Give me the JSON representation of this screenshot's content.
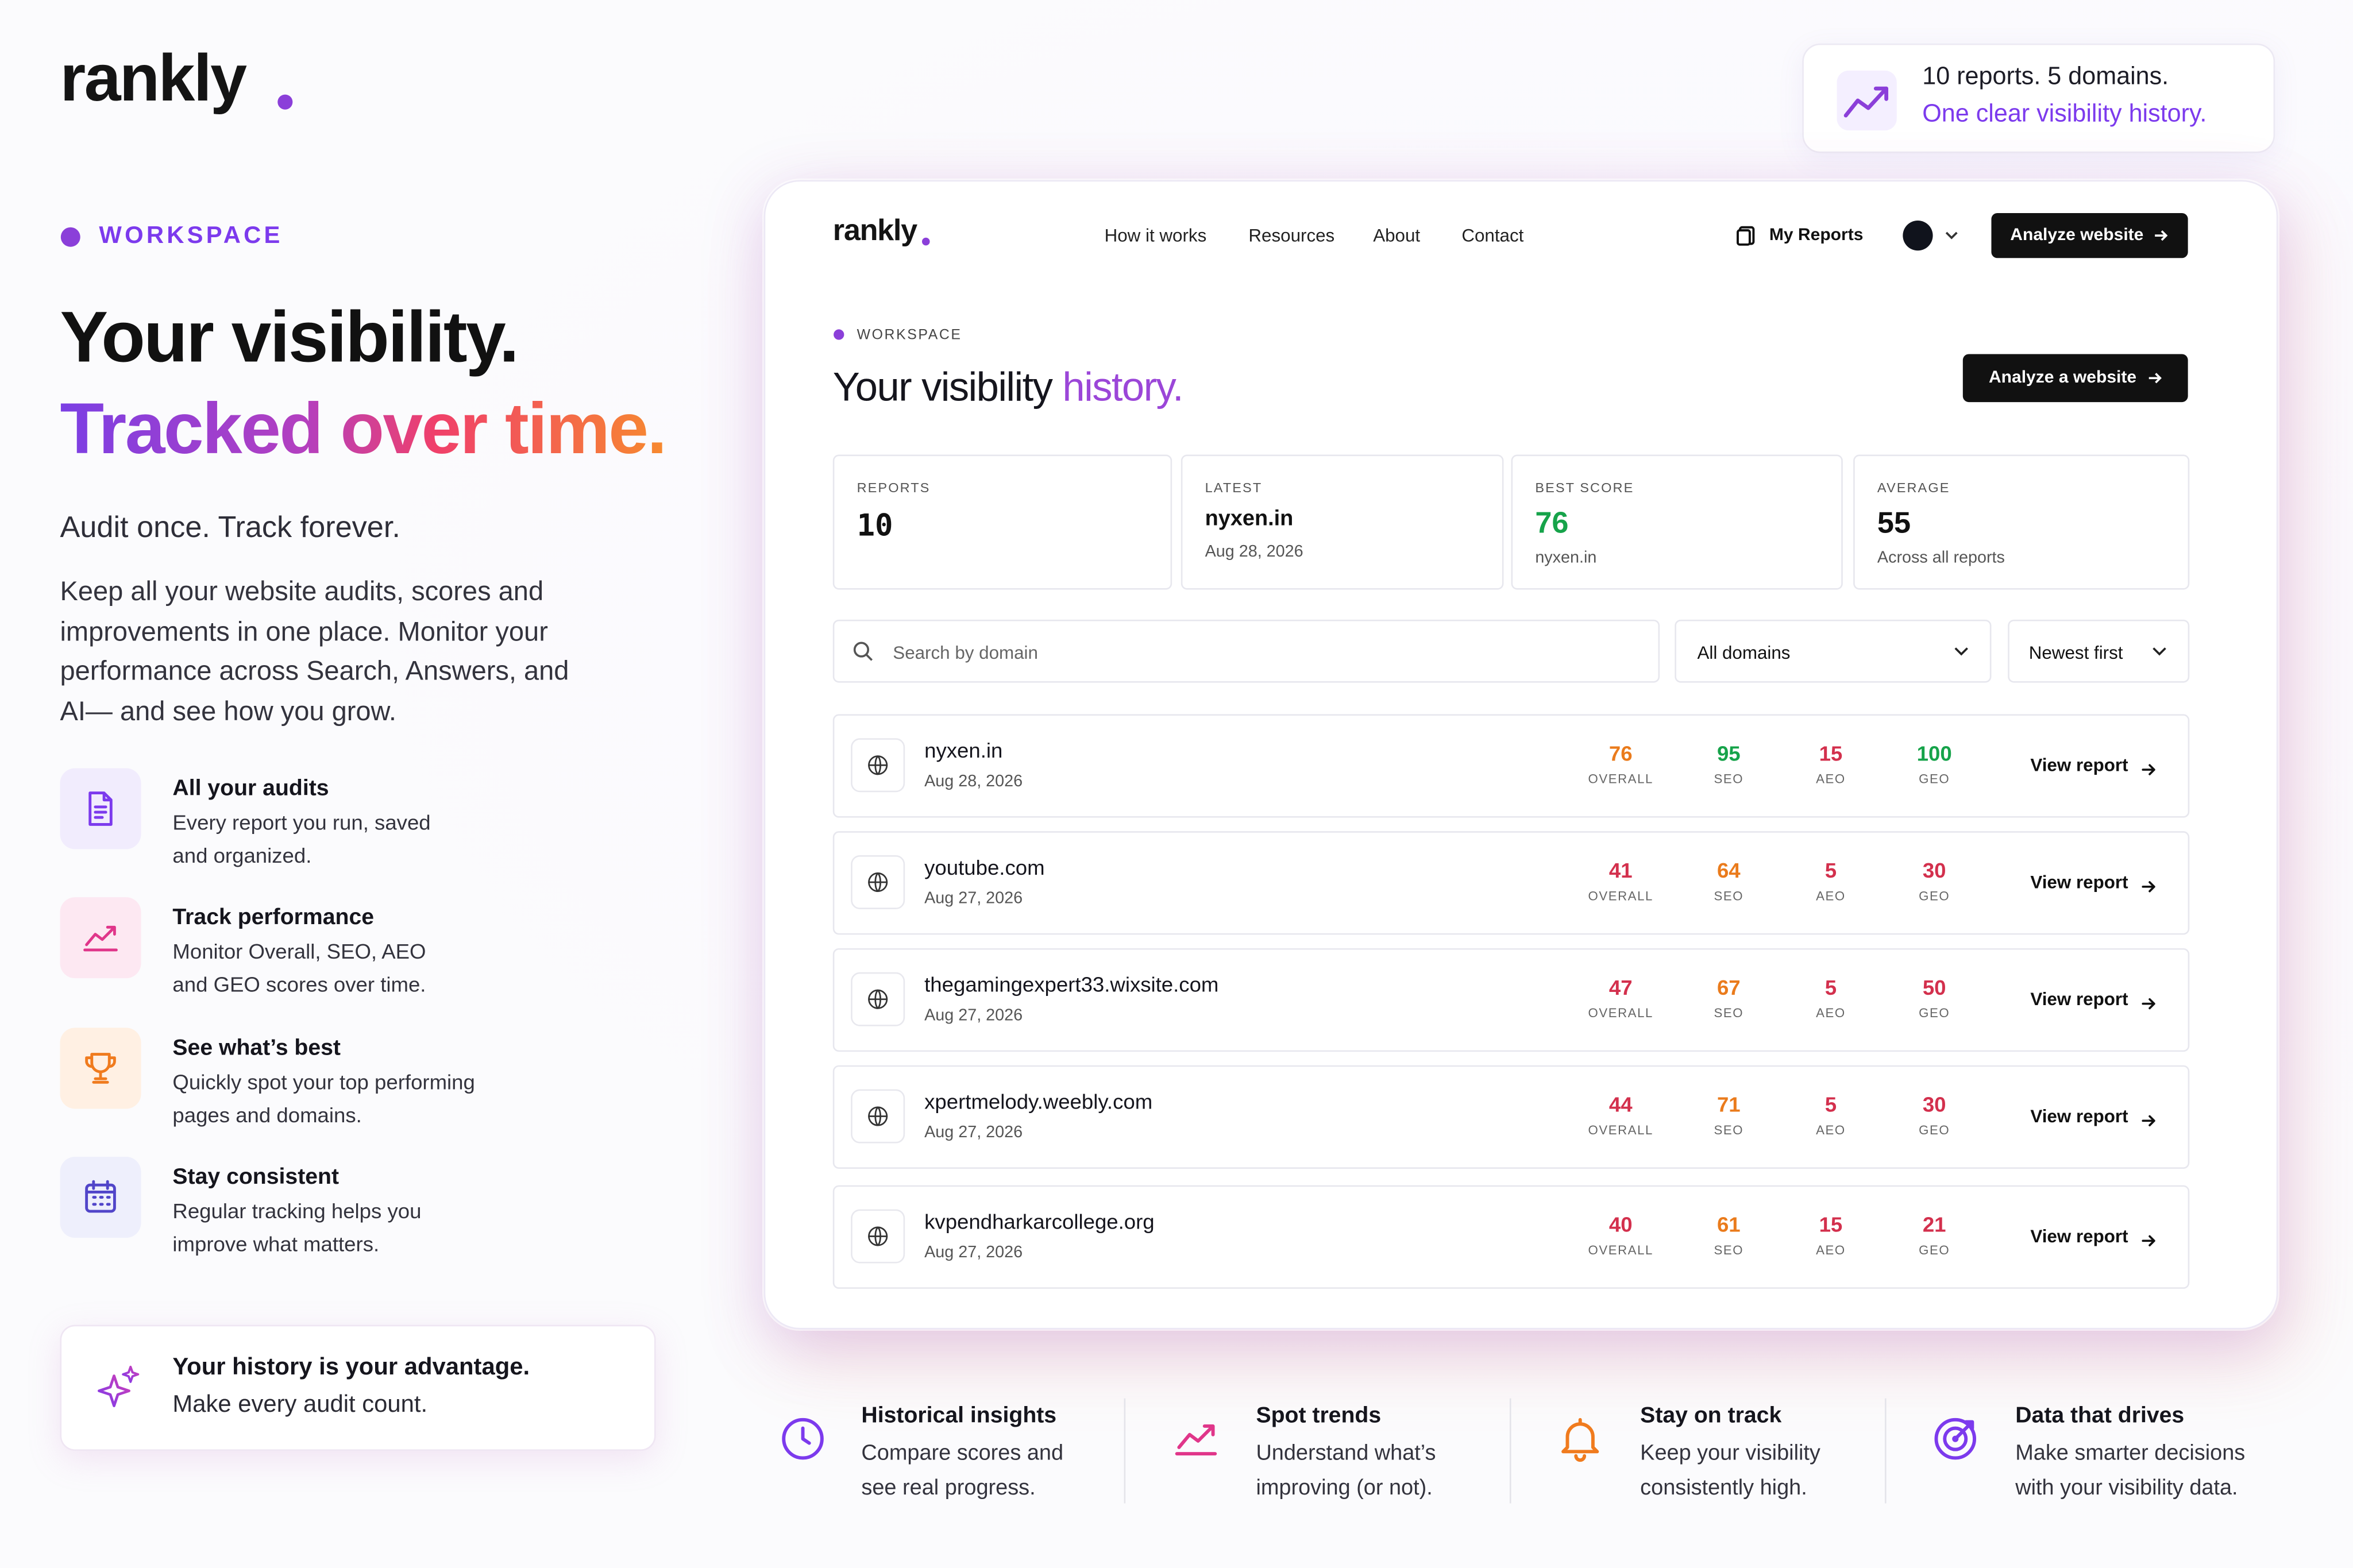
{
  "brand": "rankly",
  "top_badge": {
    "line1": "10 reports. 5 domains.",
    "line2": "One clear visibility history."
  },
  "hero": {
    "eyebrow": "WORKSPACE",
    "title_line1": "Your visibility.",
    "title_line2": "Tracked over time.",
    "subtitle": "Audit once. Track forever.",
    "body": "Keep all your website audits, scores and improvements in one place. Monitor your performance across Search, Answers, and AI— and see how you grow."
  },
  "features": [
    {
      "title": "All your audits",
      "text": "Every report you run, saved and organized."
    },
    {
      "title": "Track performance",
      "text": "Monitor Overall, SEO, AEO and GEO scores over time."
    },
    {
      "title": "See what’s best",
      "text": "Quickly spot your top performing pages and domains."
    },
    {
      "title": "Stay consistent",
      "text": "Regular tracking helps you improve what matters."
    }
  ],
  "callout": {
    "line1": "Your history is your advantage.",
    "line2": "Make every audit count."
  },
  "app": {
    "nav": {
      "logo": "rankly",
      "links": [
        "How it works",
        "Resources",
        "About",
        "Contact"
      ],
      "my_reports": "My Reports",
      "cta": "Analyze website"
    },
    "eyebrow": "WORKSPACE",
    "heading": "Your visibility",
    "heading_accent": "history.",
    "action": "Analyze a website",
    "stats": [
      {
        "label": "REPORTS",
        "value": 10
      },
      {
        "label": "LATEST",
        "value": "nyxen.in",
        "note": "Aug 28, 2026"
      },
      {
        "label": "BEST SCORE",
        "value": 76,
        "note": "nyxen.in"
      },
      {
        "label": "AVERAGE",
        "value": 55,
        "note": "Across all reports"
      }
    ],
    "search_placeholder": "Search by domain",
    "filter": "All domains",
    "sort": "Newest first",
    "score_labels": [
      "OVERALL",
      "SEO",
      "AEO",
      "GEO"
    ],
    "view_label": "View report",
    "rows": [
      {
        "domain": "nyxen.in",
        "date": "Aug 28, 2026",
        "scores": [
          76,
          95,
          15,
          100
        ]
      },
      {
        "domain": "youtube.com",
        "date": "Aug 27, 2026",
        "scores": [
          41,
          64,
          5,
          30
        ]
      },
      {
        "domain": "thegamingexpert33.wixsite.com",
        "date": "Aug 27, 2026",
        "scores": [
          47,
          67,
          5,
          50
        ]
      },
      {
        "domain": "xpertmelody.weebly.com",
        "date": "Aug 27, 2026",
        "scores": [
          44,
          71,
          5,
          30
        ]
      },
      {
        "domain": "kvpendharkarcollege.org",
        "date": "Aug 27, 2026",
        "scores": [
          40,
          61,
          15,
          21
        ]
      }
    ]
  },
  "bottom_features": [
    {
      "title": "Historical insights",
      "text": "Compare scores and see real progress."
    },
    {
      "title": "Spot trends",
      "text": "Understand what’s improving (or not)."
    },
    {
      "title": "Stay on track",
      "text": "Keep your visibility consistently high."
    },
    {
      "title": "Data that drives",
      "text": "Make smarter decisions with your visibility data."
    }
  ]
}
